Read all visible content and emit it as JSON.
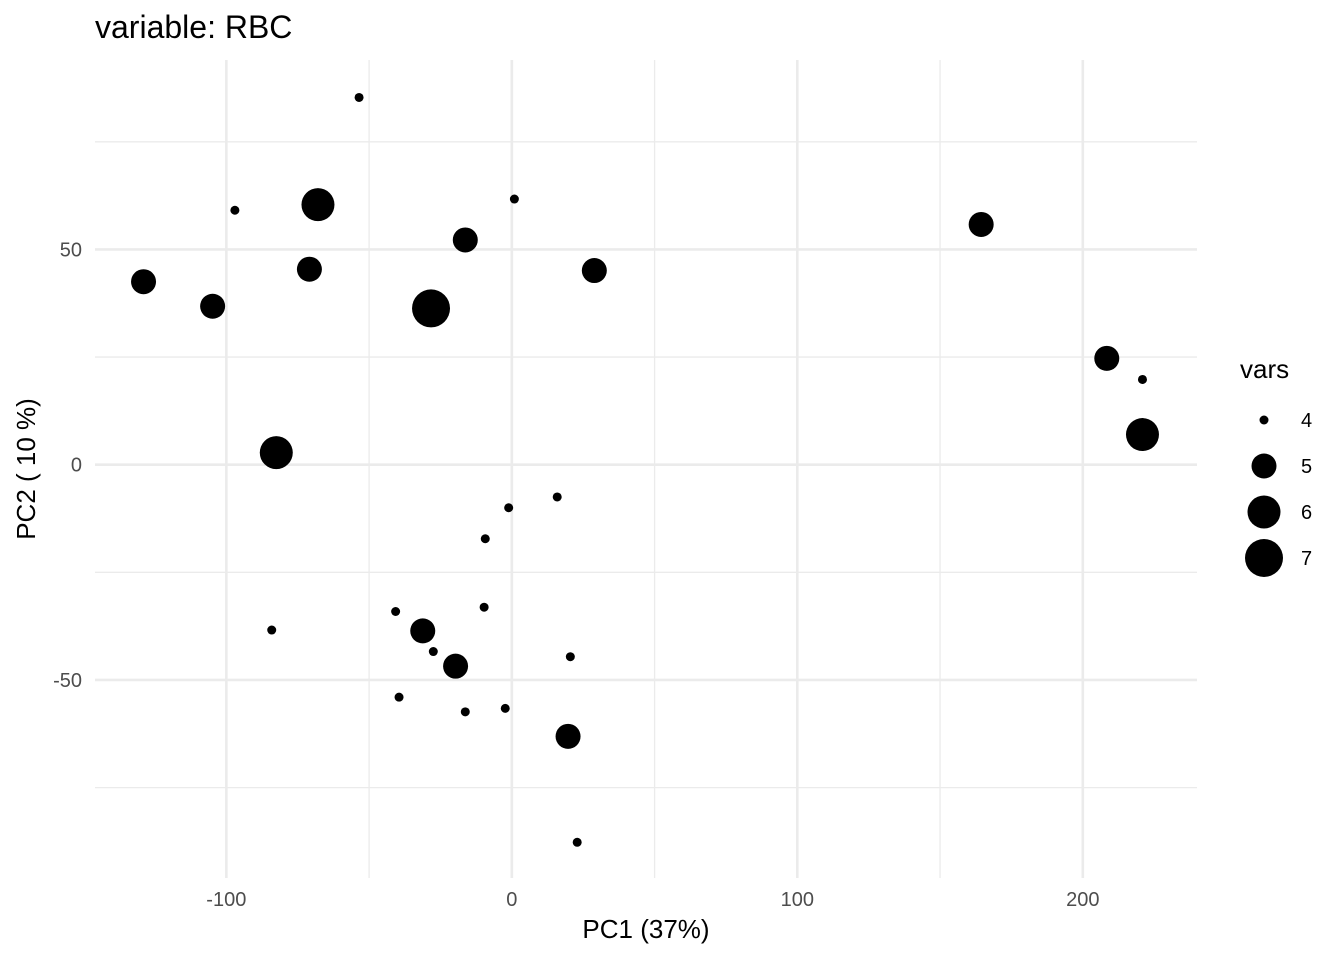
{
  "chart_data": {
    "type": "scatter",
    "title": "variable: RBC",
    "xlabel": "PC1 (37%)",
    "ylabel": "PC2 ( 10 %)",
    "xlim": [
      -146,
      240
    ],
    "ylim": [
      -96,
      94
    ],
    "x_ticks": [
      -100,
      0,
      100,
      200
    ],
    "x_tick_labels": [
      "-100",
      "0",
      "100",
      "200"
    ],
    "x_minor_ticks": [
      -50,
      50,
      150
    ],
    "y_ticks": [
      -50,
      0,
      50
    ],
    "y_tick_labels": [
      "-50",
      "0",
      "50"
    ],
    "y_minor_ticks": [
      -75,
      -25,
      25,
      75
    ],
    "grid": true,
    "point_color": "#000000",
    "legend": {
      "title": "vars",
      "position": "right",
      "entries": [
        {
          "label": "4",
          "value": 4
        },
        {
          "label": "5",
          "value": 5
        },
        {
          "label": "6",
          "value": 6
        },
        {
          "label": "7",
          "value": 7
        }
      ]
    },
    "points": [
      {
        "x": -53.5,
        "y": 85.3,
        "vars": 4
      },
      {
        "x": -97.0,
        "y": 59.1,
        "vars": 4
      },
      {
        "x": 0.9,
        "y": 61.7,
        "vars": 4
      },
      {
        "x": -67.9,
        "y": 60.4,
        "vars": 6
      },
      {
        "x": -16.3,
        "y": 52.2,
        "vars": 5
      },
      {
        "x": 164.4,
        "y": 55.8,
        "vars": 5
      },
      {
        "x": -129.0,
        "y": 42.5,
        "vars": 5
      },
      {
        "x": -70.9,
        "y": 45.4,
        "vars": 5
      },
      {
        "x": 28.9,
        "y": 45.1,
        "vars": 5
      },
      {
        "x": -104.8,
        "y": 36.8,
        "vars": 5
      },
      {
        "x": -28.3,
        "y": 36.3,
        "vars": 7
      },
      {
        "x": 208.4,
        "y": 24.7,
        "vars": 5
      },
      {
        "x": 220.9,
        "y": 19.8,
        "vars": 4
      },
      {
        "x": 220.9,
        "y": 7.0,
        "vars": 6
      },
      {
        "x": -82.5,
        "y": 2.8,
        "vars": 6
      },
      {
        "x": 15.9,
        "y": -7.5,
        "vars": 4
      },
      {
        "x": -1.1,
        "y": -10.0,
        "vars": 4
      },
      {
        "x": -9.3,
        "y": -17.2,
        "vars": 4
      },
      {
        "x": -40.7,
        "y": -34.1,
        "vars": 4
      },
      {
        "x": -9.7,
        "y": -33.1,
        "vars": 4
      },
      {
        "x": -84.1,
        "y": -38.4,
        "vars": 4
      },
      {
        "x": -31.2,
        "y": -38.6,
        "vars": 5
      },
      {
        "x": -27.5,
        "y": -43.4,
        "vars": 4
      },
      {
        "x": -19.7,
        "y": -46.8,
        "vars": 5
      },
      {
        "x": 20.5,
        "y": -44.6,
        "vars": 4
      },
      {
        "x": -39.5,
        "y": -54.0,
        "vars": 4
      },
      {
        "x": -16.3,
        "y": -57.4,
        "vars": 4
      },
      {
        "x": -2.3,
        "y": -56.6,
        "vars": 4
      },
      {
        "x": 19.7,
        "y": -63.1,
        "vars": 5
      },
      {
        "x": 22.9,
        "y": -87.7,
        "vars": 4
      }
    ]
  }
}
